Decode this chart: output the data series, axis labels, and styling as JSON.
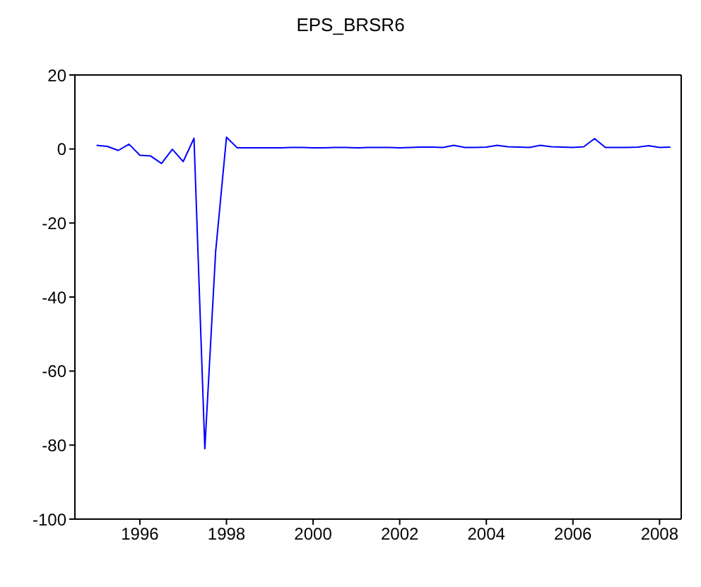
{
  "chart_data": {
    "type": "line",
    "title": "EPS_BRSR6",
    "x": [
      1995.5,
      1995.75,
      1996.0,
      1996.25,
      1996.5,
      1996.75,
      1997.0,
      1997.25,
      1997.5,
      1997.75,
      1998.0,
      1998.25,
      1998.5,
      1998.75,
      1999.0,
      1999.25,
      1999.5,
      1999.75,
      2000.0,
      2000.25,
      2000.5,
      2000.75,
      2001.0,
      2001.25,
      2001.5,
      2001.75,
      2002.0,
      2002.25,
      2002.5,
      2002.75,
      2003.0,
      2003.25,
      2003.5,
      2003.75,
      2004.0,
      2004.25,
      2004.5,
      2004.75,
      2005.0,
      2005.25,
      2005.5,
      2005.75,
      2006.0,
      2006.25,
      2006.5,
      2006.75,
      2007.0,
      2007.25,
      2007.5,
      2007.75,
      2008.0,
      2008.25,
      2008.5,
      2008.75
    ],
    "series": [
      {
        "color": "#0000ff",
        "values": [
          1.0,
          0.7,
          -0.4,
          1.3,
          -1.7,
          -1.9,
          -3.9,
          -0.1,
          -3.4,
          2.9,
          -81,
          -27.7,
          3.2,
          0.3,
          0.3,
          0.3,
          0.3,
          0.3,
          0.4,
          0.4,
          0.3,
          0.3,
          0.4,
          0.4,
          0.3,
          0.4,
          0.4,
          0.4,
          0.3,
          0.4,
          0.5,
          0.5,
          0.4,
          1.0,
          0.4,
          0.4,
          0.5,
          1.0,
          0.6,
          0.5,
          0.4,
          1.0,
          0.6,
          0.5,
          0.4,
          0.6,
          2.8,
          0.4,
          0.4,
          0.4,
          0.5,
          0.9,
          0.4,
          0.5
        ]
      }
    ],
    "xlim": [
      1995,
      2009
    ],
    "xticks": [
      {
        "value": 1996.5,
        "label": "1996"
      },
      {
        "value": 1998.5,
        "label": "1998"
      },
      {
        "value": 2000.5,
        "label": "2000"
      },
      {
        "value": 2002.5,
        "label": "2002"
      },
      {
        "value": 2004.5,
        "label": "2004"
      },
      {
        "value": 2006.5,
        "label": "2006"
      },
      {
        "value": 2008.5,
        "label": "2008"
      }
    ],
    "ylim": [
      -100,
      20
    ],
    "yticks": [
      -100,
      -80,
      -60,
      -40,
      -20,
      0,
      20
    ],
    "grid": false,
    "legend": false,
    "marker": "none",
    "line_style": "solid"
  }
}
